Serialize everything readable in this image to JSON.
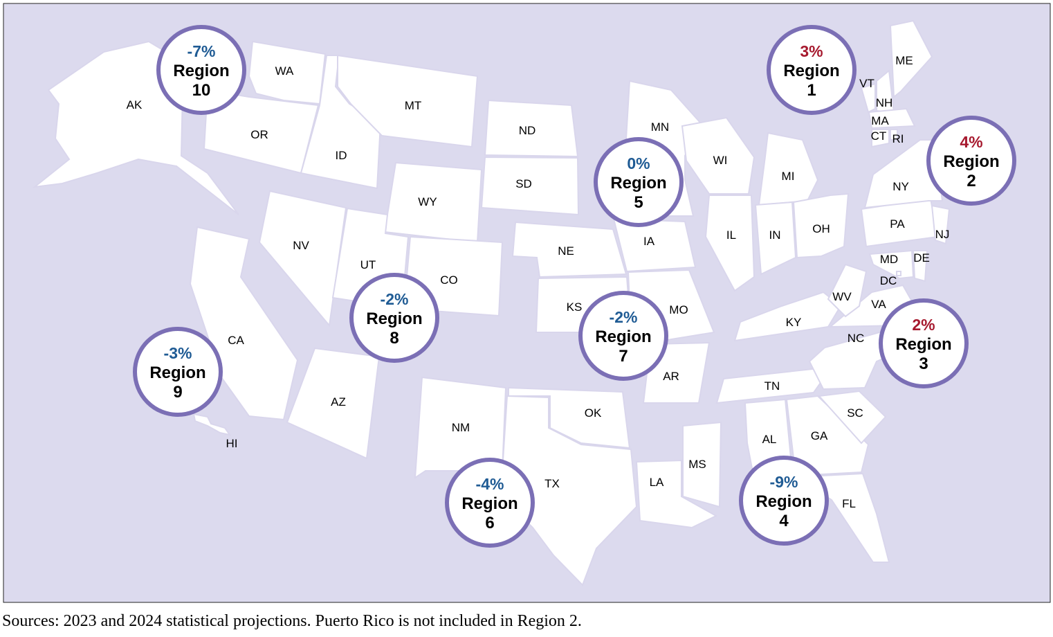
{
  "colors": {
    "background": "#dcdaee",
    "state_fill": "#ffffff",
    "circle_stroke": "#7b6fb5",
    "increase": "#a6192e",
    "decrease": "#1f5b94"
  },
  "states": [
    "AK",
    "WA",
    "OR",
    "ID",
    "MT",
    "ND",
    "SD",
    "WY",
    "NV",
    "UT",
    "CO",
    "CA",
    "AZ",
    "NM",
    "NE",
    "KS",
    "OK",
    "TX",
    "IA",
    "MO",
    "AR",
    "LA",
    "MN",
    "WI",
    "MI",
    "IL",
    "IN",
    "OH",
    "KY",
    "TN",
    "MS",
    "AL",
    "GA",
    "SC",
    "NC",
    "FL",
    "VA",
    "WV",
    "PA",
    "NY",
    "NJ",
    "MD",
    "DE",
    "DC",
    "VT",
    "NH",
    "ME",
    "MA",
    "CT",
    "RI",
    "HI"
  ],
  "regions": [
    {
      "name": "Region",
      "number": "10",
      "change": "-7%",
      "direction": "decrease"
    },
    {
      "name": "Region",
      "number": "1",
      "change": "3%",
      "direction": "increase"
    },
    {
      "name": "Region",
      "number": "2",
      "change": "4%",
      "direction": "increase"
    },
    {
      "name": "Region",
      "number": "5",
      "change": "0%",
      "direction": "decrease"
    },
    {
      "name": "Region",
      "number": "8",
      "change": "-2%",
      "direction": "decrease"
    },
    {
      "name": "Region",
      "number": "7",
      "change": "-2%",
      "direction": "decrease"
    },
    {
      "name": "Region",
      "number": "9",
      "change": "-3%",
      "direction": "decrease"
    },
    {
      "name": "Region",
      "number": "3",
      "change": "2%",
      "direction": "increase"
    },
    {
      "name": "Region",
      "number": "6",
      "change": "-4%",
      "direction": "decrease"
    },
    {
      "name": "Region",
      "number": "4",
      "change": "-9%",
      "direction": "decrease"
    }
  ],
  "caption": "Sources: 2023 and 2024 statistical projections. Puerto Rico is not included in Region 2."
}
